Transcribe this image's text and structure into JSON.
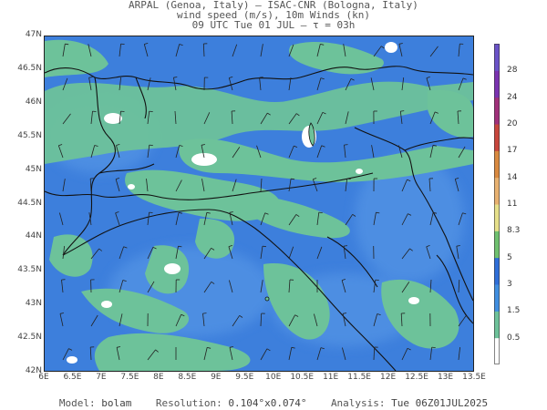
{
  "header": {
    "line1": "ARPAL (Genoa, Italy)  –  ISAC-CNR (Bologna, Italy)",
    "line2": "wind speed (m/s), 10m Winds (kn)",
    "line3": "09 UTC Tue 01 JUL  –  τ = 03h"
  },
  "map": {
    "lat_labels": [
      "47N",
      "46.5N",
      "46N",
      "45.5N",
      "45N",
      "44.5N",
      "44N",
      "43.5N",
      "43N",
      "42.5N",
      "42N"
    ],
    "lon_labels": [
      "6E",
      "6.5E",
      "7E",
      "7.5E",
      "8E",
      "8.5E",
      "9E",
      "9.5E",
      "10E",
      "10.5E",
      "11E",
      "11.5E",
      "12E",
      "12.5E",
      "13E",
      "13.5E"
    ],
    "lat_range": [
      42,
      47
    ],
    "lon_range": [
      6,
      13.5
    ],
    "watermark": "ARPAL",
    "colors": {
      "sea": "#2e6ed8",
      "low": "#5b9be6",
      "mid": "#6dc29a",
      "calm": "#ffffff",
      "border": "#111111"
    }
  },
  "colorbar": {
    "labels": [
      "0.5",
      "1.5",
      "3",
      "5",
      "8.3",
      "11",
      "14",
      "17",
      "20",
      "24",
      "28"
    ],
    "colors": [
      "#ffffff",
      "#6dc29a",
      "#3f8ee0",
      "#2e6ed8",
      "#6fc16f",
      "#e6e08a",
      "#e8b170",
      "#d9893f",
      "#c8463c",
      "#a0307a",
      "#7a32b0",
      "#6a52c8"
    ]
  },
  "footer": {
    "model_label": "Model:",
    "model": "bolam",
    "resolution_label": "Resolution:",
    "resolution": "0.104°x0.074°",
    "analysis_label": "Analysis:",
    "analysis": "Tue 06Z01JUL2025"
  }
}
